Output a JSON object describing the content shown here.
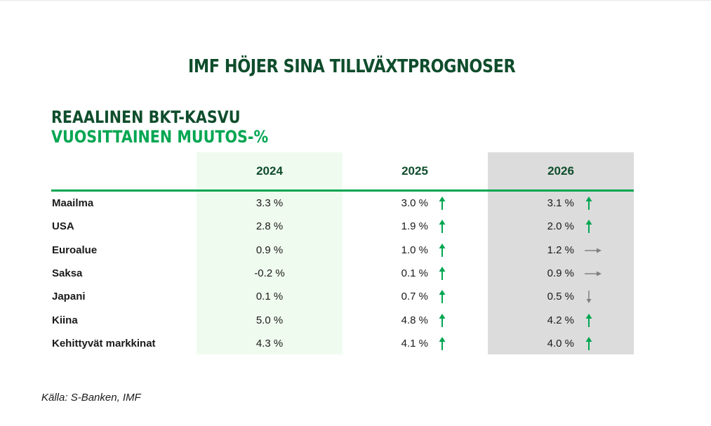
{
  "title": "IMF HÖJER SINA TILLVÄXTPROGNOSER",
  "subtitle_line1": "REAALINEN BKT-KASVU",
  "subtitle_line2": "VUOSITTAINEN MUUTOS-%",
  "source": "Källa: S-Banken, IMF",
  "colors": {
    "dark_green": "#0f4d2c",
    "green": "#00a651",
    "light_green_bg": "#f0fbef",
    "grey_bg": "#dcdcdc",
    "grey_arrow": "#808080"
  },
  "chart_data": {
    "type": "table",
    "columns": [
      "2024",
      "2025",
      "2026"
    ],
    "rows": [
      {
        "label": "Maailma",
        "values": [
          "3.3 %",
          "3.0 %",
          "3.1 %"
        ],
        "trend_2025": "up",
        "trend_2026": "up"
      },
      {
        "label": "USA",
        "values": [
          "2.8 %",
          "1.9 %",
          "2.0 %"
        ],
        "trend_2025": "up",
        "trend_2026": "up"
      },
      {
        "label": "Euroalue",
        "values": [
          "0.9 %",
          "1.0 %",
          "1.2 %"
        ],
        "trend_2025": "up",
        "trend_2026": "flat"
      },
      {
        "label": "Saksa",
        "values": [
          "-0.2 %",
          "0.1 %",
          "0.9 %"
        ],
        "trend_2025": "up",
        "trend_2026": "flat"
      },
      {
        "label": "Japani",
        "values": [
          "0.1 %",
          "0.7 %",
          "0.5 %"
        ],
        "trend_2025": "up",
        "trend_2026": "down"
      },
      {
        "label": "Kiina",
        "values": [
          "5.0 %",
          "4.8 %",
          "4.2 %"
        ],
        "trend_2025": "up",
        "trend_2026": "up"
      },
      {
        "label": "Kehittyvät markkinat",
        "values": [
          "4.3 %",
          "4.1 %",
          "4.0 %"
        ],
        "trend_2025": "up",
        "trend_2026": "up"
      }
    ]
  }
}
